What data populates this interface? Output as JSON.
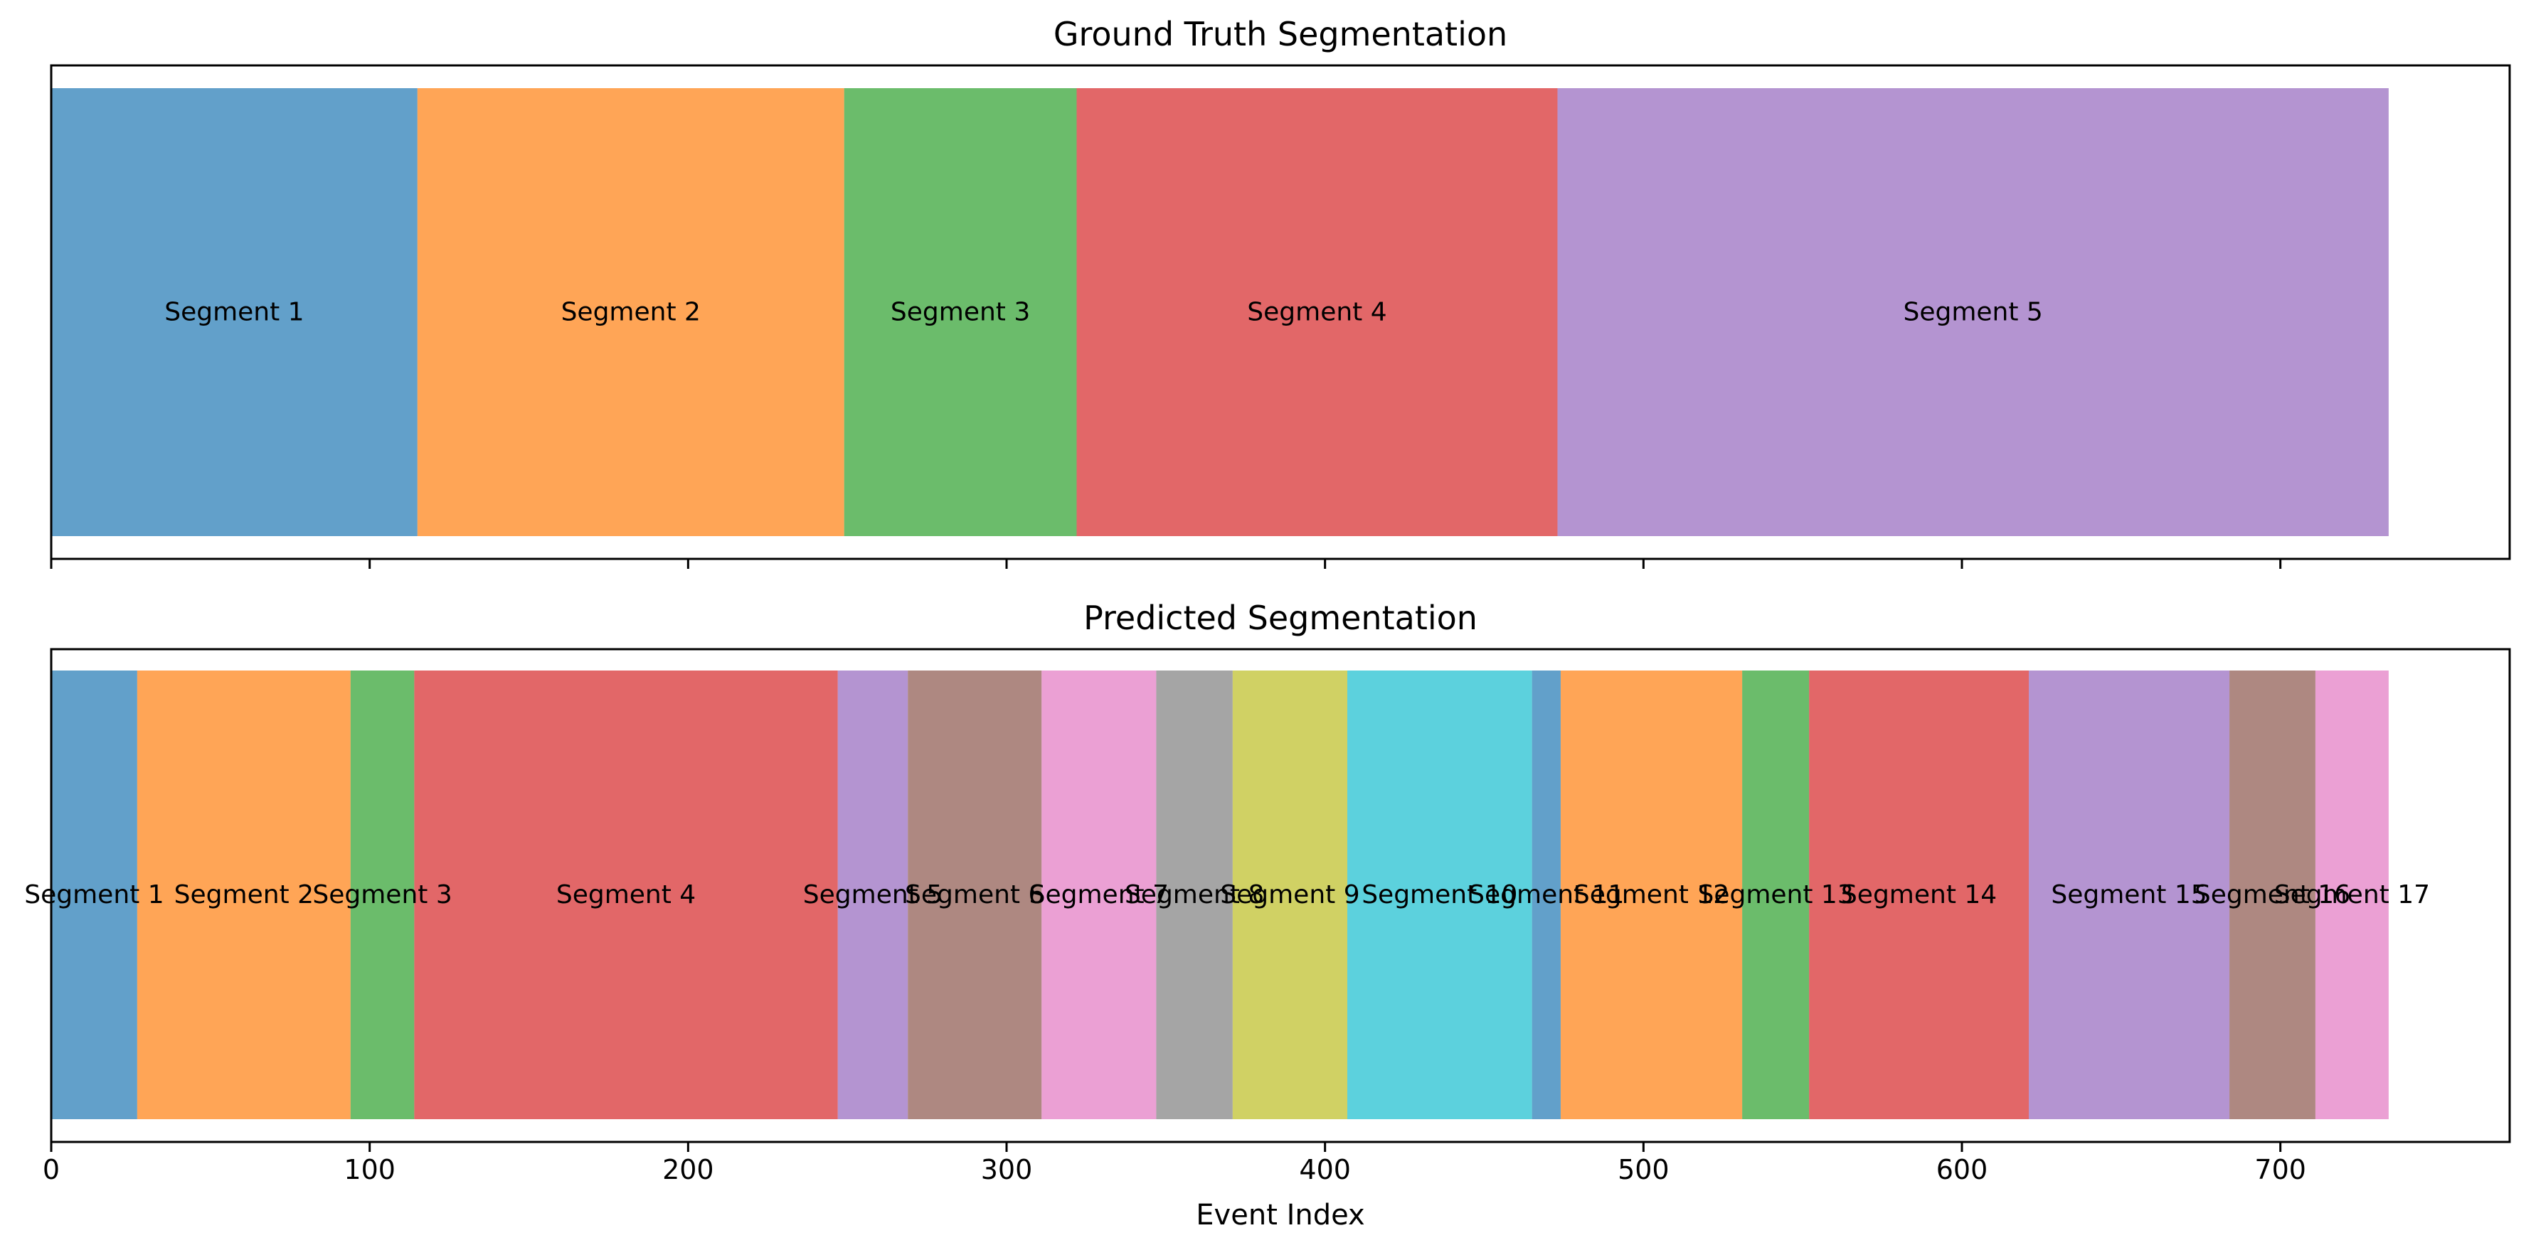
{
  "chart_data": [
    {
      "type": "bar",
      "orientation": "horizontal-stacked",
      "title": "Ground Truth Segmentation",
      "xlabel": "",
      "ylabel": "",
      "xlim": [
        0,
        772
      ],
      "x_ticks": [
        0,
        100,
        200,
        300,
        400,
        500,
        600,
        700
      ],
      "show_tick_labels": false,
      "segments": [
        {
          "label": "Segment 1",
          "start": 0,
          "end": 115,
          "color": "#1f77b4"
        },
        {
          "label": "Segment 2",
          "start": 115,
          "end": 249,
          "color": "#ff7f0e"
        },
        {
          "label": "Segment 3",
          "start": 249,
          "end": 322,
          "color": "#2ca02c"
        },
        {
          "label": "Segment 4",
          "start": 322,
          "end": 473,
          "color": "#d62728"
        },
        {
          "label": "Segment 5",
          "start": 473,
          "end": 734,
          "color": "#9467bd"
        }
      ]
    },
    {
      "type": "bar",
      "orientation": "horizontal-stacked",
      "title": "Predicted Segmentation",
      "xlabel": "Event Index",
      "ylabel": "",
      "xlim": [
        0,
        772
      ],
      "x_ticks": [
        0,
        100,
        200,
        300,
        400,
        500,
        600,
        700
      ],
      "show_tick_labels": true,
      "segments": [
        {
          "label": "Segment 1",
          "start": 0,
          "end": 27,
          "color": "#1f77b4"
        },
        {
          "label": "Segment 2",
          "start": 27,
          "end": 94,
          "color": "#ff7f0e"
        },
        {
          "label": "Segment 3",
          "start": 94,
          "end": 114,
          "color": "#2ca02c"
        },
        {
          "label": "Segment 4",
          "start": 114,
          "end": 247,
          "color": "#d62728"
        },
        {
          "label": "Segment 5",
          "start": 247,
          "end": 269,
          "color": "#9467bd"
        },
        {
          "label": "Segment 6",
          "start": 269,
          "end": 311,
          "color": "#8c564b"
        },
        {
          "label": "Segment 7",
          "start": 311,
          "end": 347,
          "color": "#e377c2"
        },
        {
          "label": "Segment 8",
          "start": 347,
          "end": 371,
          "color": "#7f7f7f"
        },
        {
          "label": "Segment 9",
          "start": 371,
          "end": 407,
          "color": "#bcbd22"
        },
        {
          "label": "Segment 10",
          "start": 407,
          "end": 465,
          "color": "#17becf"
        },
        {
          "label": "Segment 11",
          "start": 465,
          "end": 474,
          "color": "#1f77b4"
        },
        {
          "label": "Segment 12",
          "start": 474,
          "end": 531,
          "color": "#ff7f0e"
        },
        {
          "label": "Segment 13",
          "start": 531,
          "end": 552,
          "color": "#2ca02c"
        },
        {
          "label": "Segment 14",
          "start": 552,
          "end": 621,
          "color": "#d62728"
        },
        {
          "label": "Segment 15",
          "start": 621,
          "end": 684,
          "color": "#9467bd"
        },
        {
          "label": "Segment 16",
          "start": 684,
          "end": 711,
          "color": "#8c564b"
        },
        {
          "label": "Segment 17",
          "start": 711,
          "end": 734,
          "color": "#e377c2"
        }
      ]
    }
  ]
}
